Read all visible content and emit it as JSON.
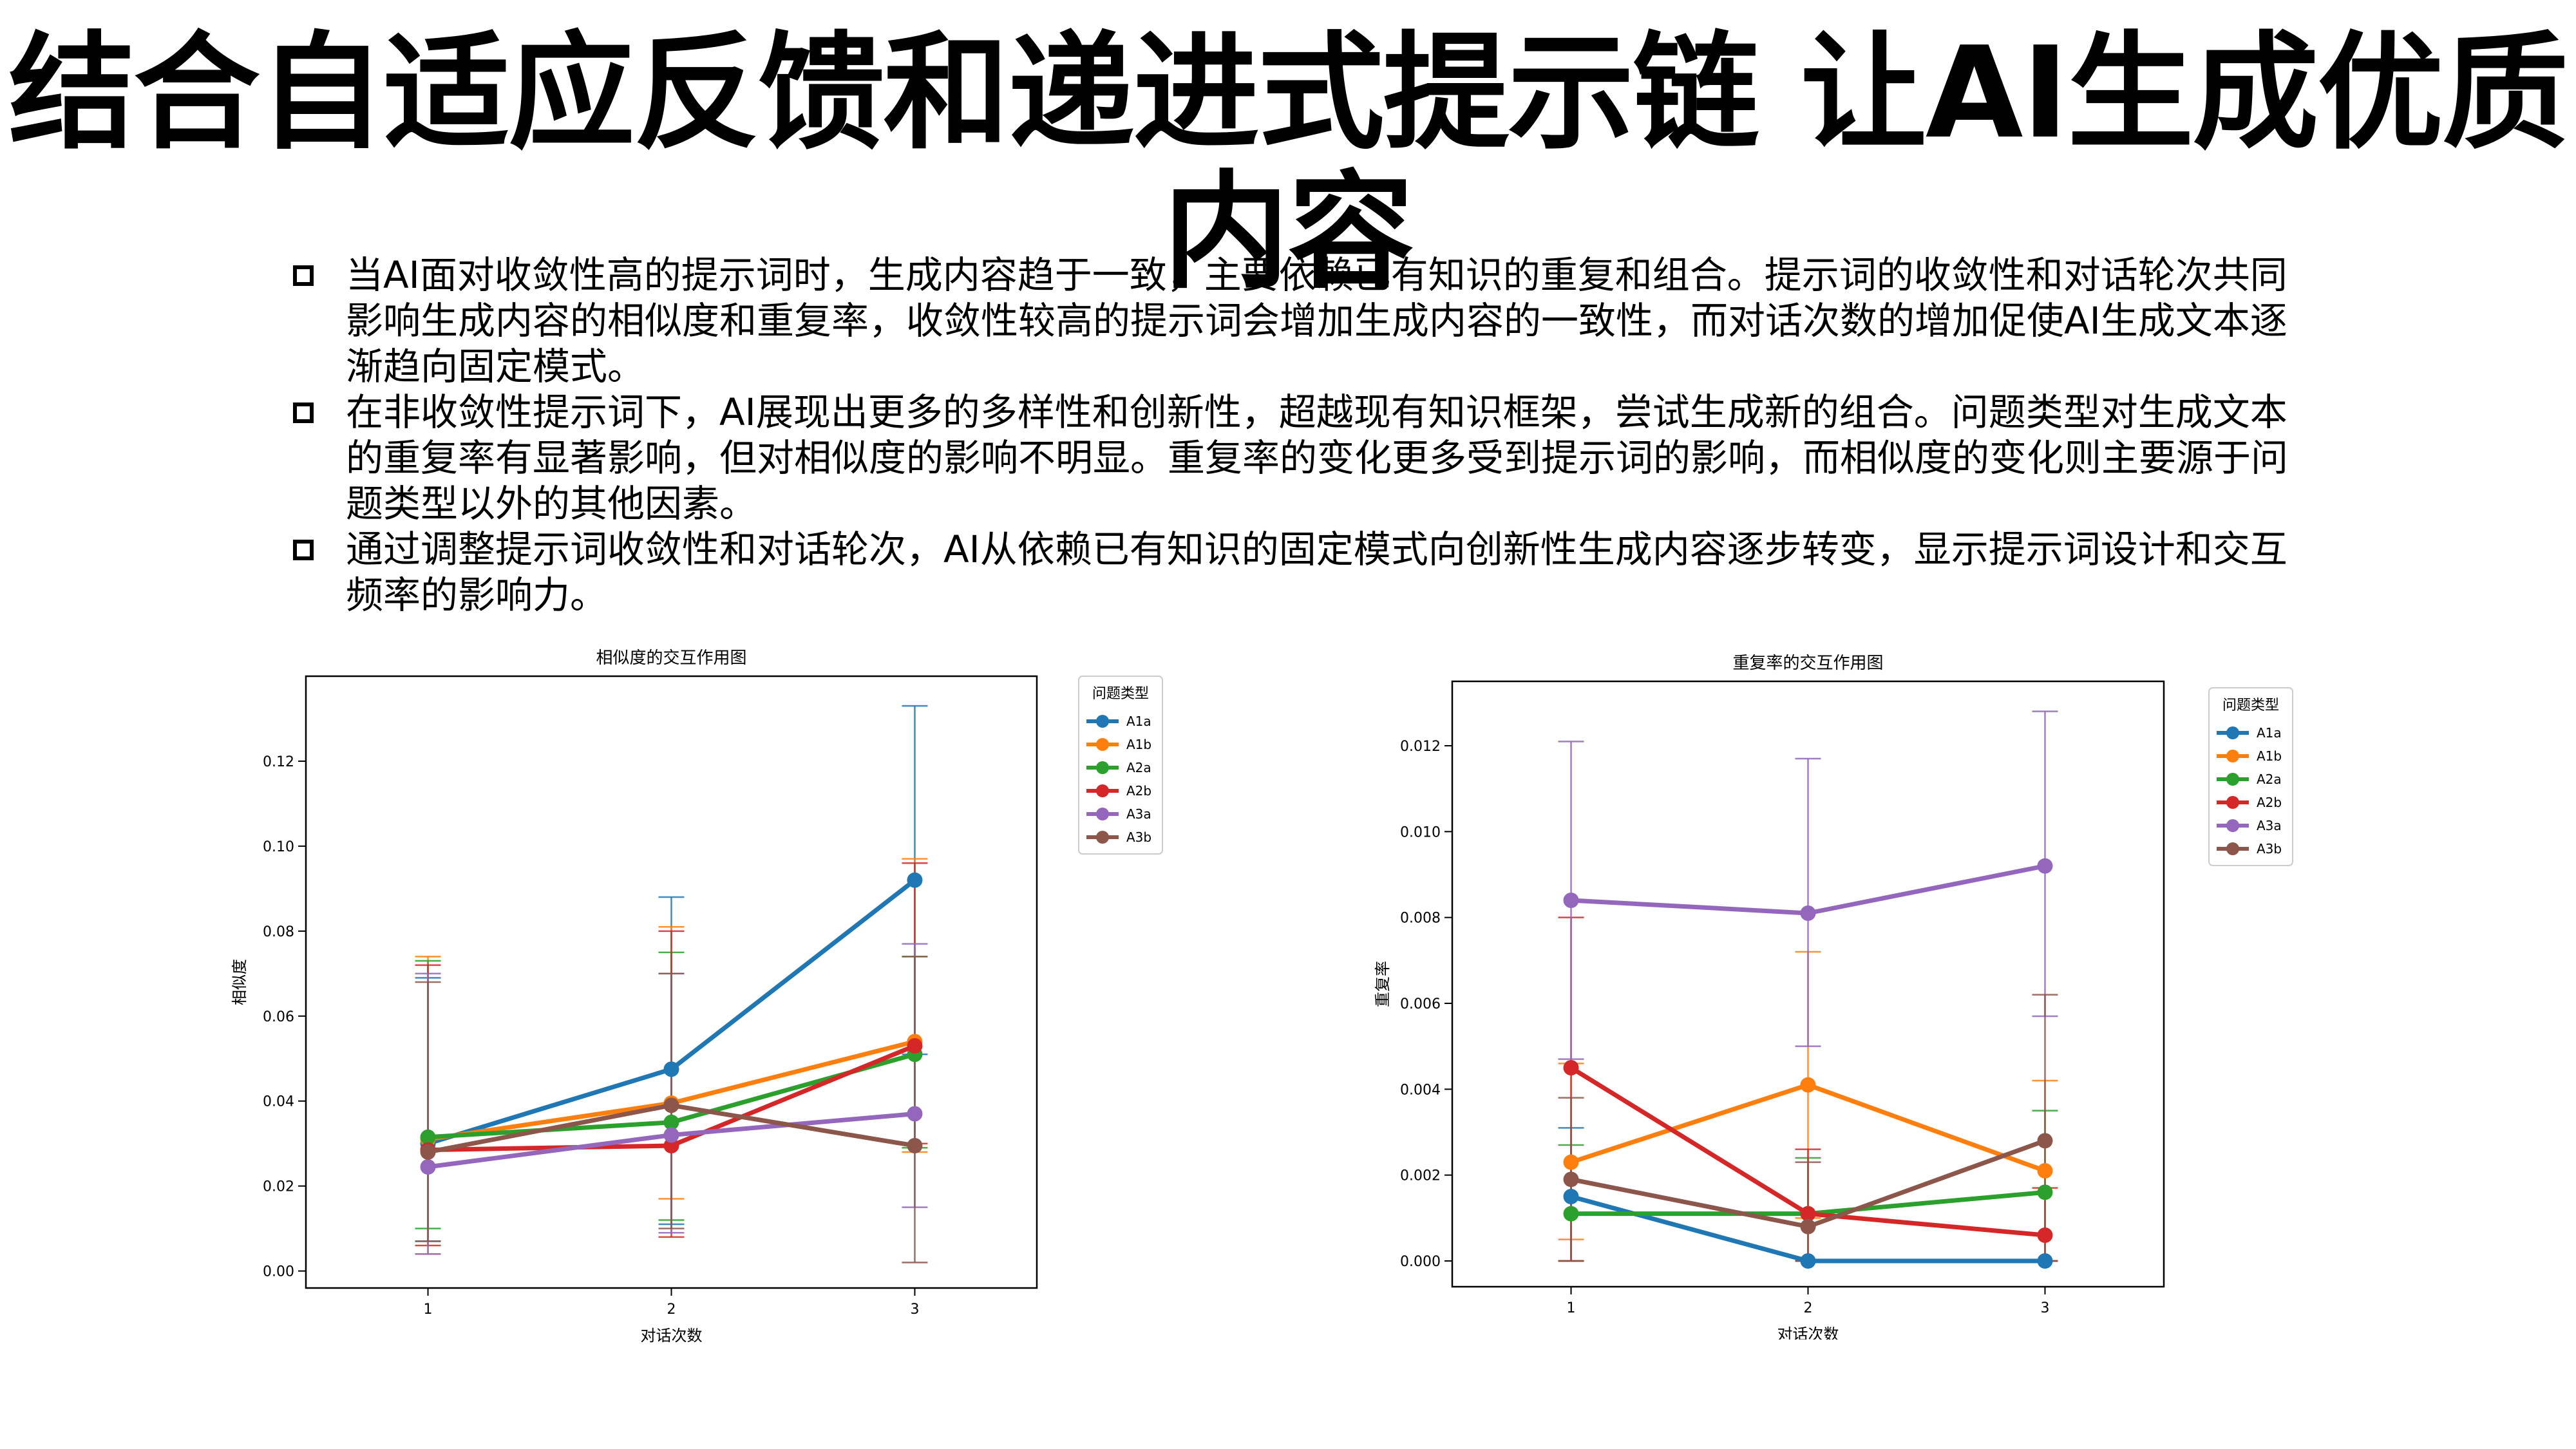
{
  "slide": {
    "title": "结合自适应反馈和递进式提示链 让AI生成优质内容",
    "bullets": [
      "当AI面对收敛性高的提示词时，生成内容趋于一致，主要依赖已有知识的重复和组合。提示词的收敛性和对话轮次共同影响生成内容的相似度和重复率，收敛性较高的提示词会增加生成内容的一致性，而对话次数的增加促使AI生成文本逐渐趋向固定模式。",
      "在非收敛性提示词下，AI展现出更多的多样性和创新性，超越现有知识框架，尝试生成新的组合。问题类型对生成文本的重复率有显著影响，但对相似度的影响不明显。重复率的变化更多受到提示词的影响，而相似度的变化则主要源于问题类型以外的其他因素。",
      "通过调整提示词收敛性和对话轮次，AI从依赖已有知识的固定模式向创新性生成内容逐步转变，显示提示词设计和交互频率的影响力。"
    ]
  },
  "chart_data": [
    {
      "type": "line",
      "title": "相似度的交互作用图",
      "xlabel": "对话次数",
      "ylabel": "相似度",
      "categories": [
        "1",
        "2",
        "3"
      ],
      "ylim": [
        -0.004,
        0.14
      ],
      "yticks": [
        0.0,
        0.02,
        0.04,
        0.06,
        0.08,
        0.1,
        0.12
      ],
      "ytick_labels": [
        "0.00",
        "0.02",
        "0.04",
        "0.06",
        "0.08",
        "0.10",
        "0.12"
      ],
      "legend_title": "问题类型",
      "legend_position": "outside-right",
      "series": [
        {
          "name": "A1a",
          "color": "#1f77b4",
          "values": [
            0.03,
            0.0475,
            0.092
          ],
          "lower": [
            0.007,
            0.011,
            0.051
          ],
          "upper": [
            0.069,
            0.088,
            0.133
          ]
        },
        {
          "name": "A1b",
          "color": "#ff7f0e",
          "values": [
            0.031,
            0.0395,
            0.054
          ],
          "lower": [
            0.004,
            0.017,
            0.028
          ],
          "upper": [
            0.074,
            0.081,
            0.097
          ]
        },
        {
          "name": "A2a",
          "color": "#2ca02c",
          "values": [
            0.0315,
            0.035,
            0.051
          ],
          "lower": [
            0.01,
            0.012,
            0.029
          ],
          "upper": [
            0.073,
            0.075,
            0.074
          ]
        },
        {
          "name": "A2b",
          "color": "#d62728",
          "values": [
            0.0285,
            0.0295,
            0.053
          ],
          "lower": [
            0.006,
            0.008,
            0.03
          ],
          "upper": [
            0.072,
            0.08,
            0.096
          ]
        },
        {
          "name": "A3a",
          "color": "#9467bd",
          "values": [
            0.0245,
            0.032,
            0.037
          ],
          "lower": [
            0.004,
            0.009,
            0.015
          ],
          "upper": [
            0.07,
            0.07,
            0.077
          ]
        },
        {
          "name": "A3b",
          "color": "#8c564b",
          "values": [
            0.028,
            0.039,
            0.0295
          ],
          "lower": [
            0.007,
            0.01,
            0.002
          ],
          "upper": [
            0.068,
            0.07,
            0.074
          ]
        }
      ]
    },
    {
      "type": "line",
      "title": "重复率的交互作用图",
      "xlabel": "对话次数",
      "ylabel": "重复率",
      "categories": [
        "1",
        "2",
        "3"
      ],
      "ylim": [
        -0.0006,
        0.0135
      ],
      "yticks": [
        0.0,
        0.002,
        0.004,
        0.006,
        0.008,
        0.01,
        0.012
      ],
      "ytick_labels": [
        "0.000",
        "0.002",
        "0.004",
        "0.006",
        "0.008",
        "0.010",
        "0.012"
      ],
      "legend_title": "问题类型",
      "legend_position": "outside-right",
      "series": [
        {
          "name": "A1a",
          "color": "#1f77b4",
          "values": [
            0.0015,
            0.0,
            0.0
          ],
          "lower": [
            0.0,
            0.0,
            0.0
          ],
          "upper": [
            0.0031,
            0.0,
            0.0
          ]
        },
        {
          "name": "A1b",
          "color": "#ff7f0e",
          "values": [
            0.0023,
            0.0041,
            0.0021
          ],
          "lower": [
            0.0005,
            0.001,
            0.0
          ],
          "upper": [
            0.0046,
            0.0072,
            0.0042
          ]
        },
        {
          "name": "A2a",
          "color": "#2ca02c",
          "values": [
            0.0011,
            0.0011,
            0.0016
          ],
          "lower": [
            0.0,
            0.0,
            0.0
          ],
          "upper": [
            0.0027,
            0.0024,
            0.0035
          ]
        },
        {
          "name": "A2b",
          "color": "#d62728",
          "values": [
            0.0045,
            0.0011,
            0.0006
          ],
          "lower": [
            0.0,
            0.0,
            0.0
          ],
          "upper": [
            0.008,
            0.0026,
            0.0017
          ]
        },
        {
          "name": "A3a",
          "color": "#9467bd",
          "values": [
            0.0084,
            0.0081,
            0.0092
          ],
          "lower": [
            0.0047,
            0.005,
            0.0057
          ],
          "upper": [
            0.0121,
            0.0117,
            0.0128
          ]
        },
        {
          "name": "A3b",
          "color": "#8c564b",
          "values": [
            0.0019,
            0.0008,
            0.0028
          ],
          "lower": [
            0.0,
            0.0,
            0.0
          ],
          "upper": [
            0.0038,
            0.0023,
            0.0062
          ]
        }
      ]
    }
  ]
}
